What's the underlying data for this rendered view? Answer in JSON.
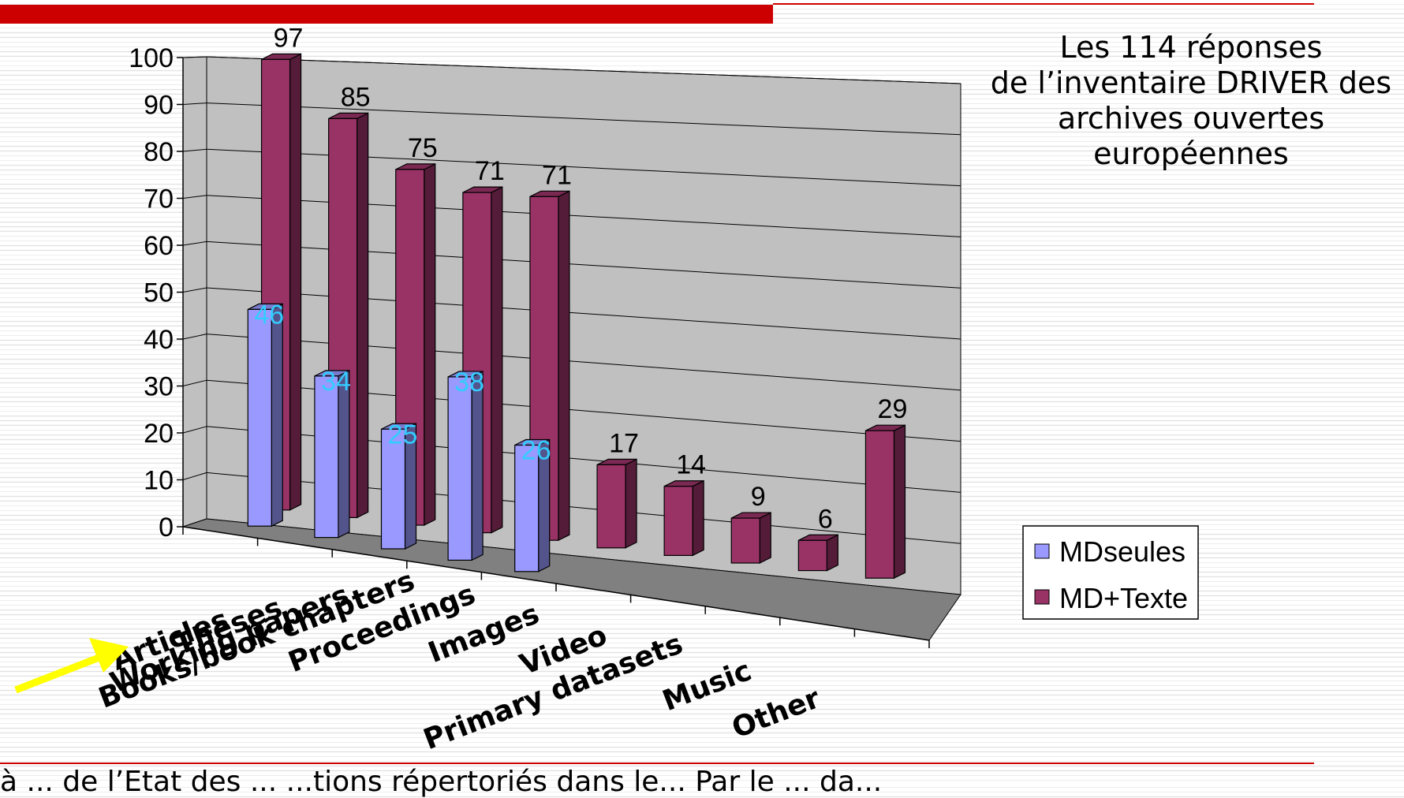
{
  "caption": {
    "line1": "Les 114 réponses",
    "line2": "de l’inventaire DRIVER des",
    "line3": "archives ouvertes",
    "line4": "européennes"
  },
  "footer": {
    "text": "à  ... de l’Etat des ... ...tions répertoriés dans le... Par le ... da..."
  },
  "colors": {
    "md_seules": "#9999ff",
    "md_texte": "#993366",
    "top_bar": "#cc0000",
    "value_label_md_seules": "#33ccff",
    "arrow": "#ffff00"
  },
  "chart_data": {
    "type": "bar",
    "style": "3d-clustered-column",
    "categories": [
      "Articles",
      "Theses",
      "Working papers",
      "Books/book chapters",
      "Proceedings",
      "Images",
      "Video",
      "Primary datasets",
      "Music",
      "Other"
    ],
    "series": [
      {
        "name": "MDseules",
        "values": [
          46,
          34,
          25,
          38,
          26,
          null,
          null,
          null,
          null,
          null
        ]
      },
      {
        "name": "MD+Texte",
        "values": [
          97,
          85,
          75,
          71,
          71,
          17,
          14,
          9,
          6,
          29
        ]
      }
    ],
    "yticks": [
      "0",
      "10",
      "20",
      "30",
      "40",
      "50",
      "60",
      "70",
      "80",
      "90",
      "100"
    ],
    "ylim": [
      0,
      100
    ],
    "grid": true,
    "legend_position": "right"
  }
}
